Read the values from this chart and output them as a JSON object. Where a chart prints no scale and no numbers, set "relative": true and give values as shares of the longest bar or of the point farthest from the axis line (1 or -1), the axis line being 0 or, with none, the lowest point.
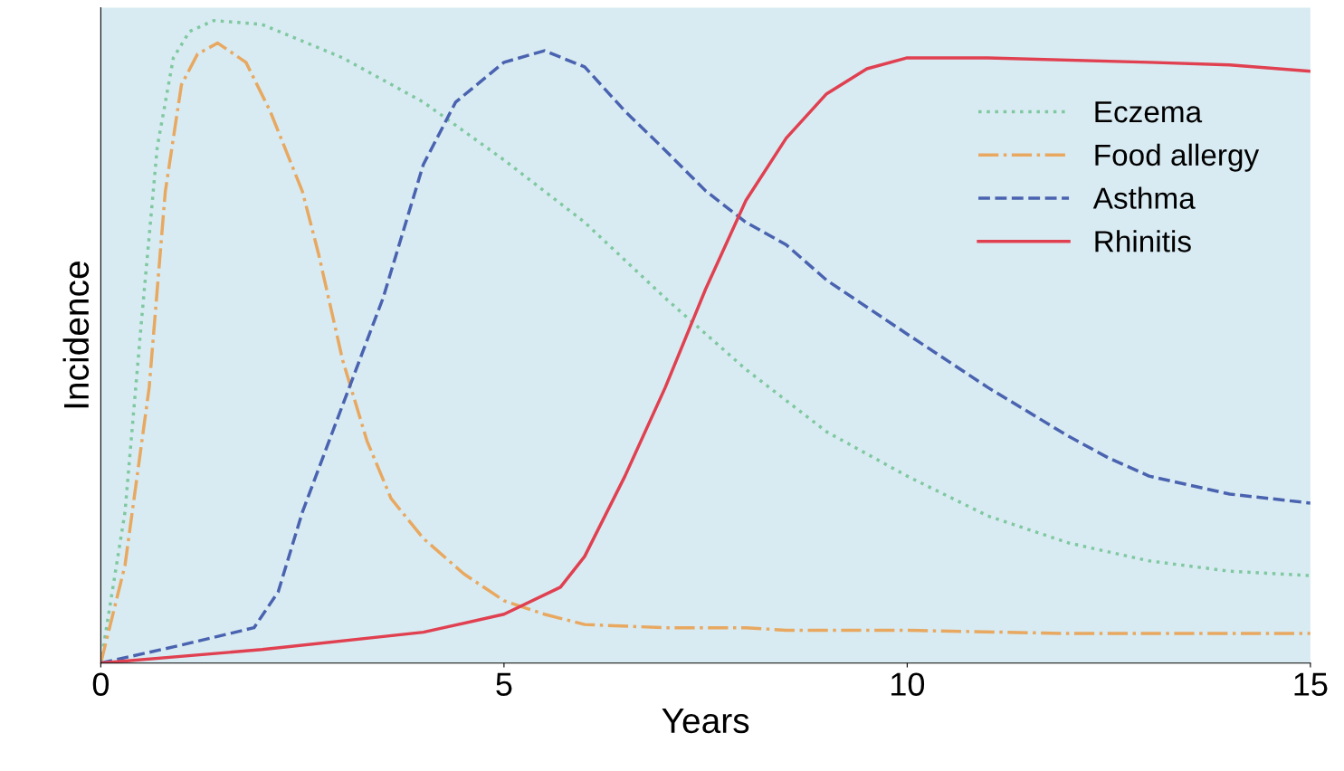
{
  "chart_data": {
    "type": "line",
    "relative": true,
    "xlabel": "Years",
    "ylabel": "Incidence",
    "xlim": [
      0,
      15
    ],
    "xticks": [
      0,
      5,
      10,
      15
    ],
    "legend": "top right",
    "tick_labels": "x",
    "series": [
      {
        "name": "Eczema",
        "color": "#7fc8a0",
        "line_style": "dotted",
        "x": [
          0,
          0.3,
          0.5,
          0.7,
          0.9,
          1.1,
          1.4,
          2,
          3,
          4,
          5,
          6,
          7,
          8,
          9,
          10,
          11,
          12,
          13,
          14,
          15
        ],
        "values": [
          0,
          0.235,
          0.526,
          0.803,
          0.942,
          0.983,
          1.0,
          0.994,
          0.942,
          0.873,
          0.783,
          0.686,
          0.568,
          0.457,
          0.36,
          0.291,
          0.229,
          0.187,
          0.159,
          0.143,
          0.136
        ]
      },
      {
        "name": "Food allergy",
        "color": "#e8a860",
        "line_style": "dashdot",
        "x": [
          0,
          0.3,
          0.6,
          0.8,
          1.0,
          1.2,
          1.45,
          1.8,
          2.1,
          2.5,
          2.7,
          3,
          3.3,
          3.6,
          4,
          4.5,
          5,
          5.5,
          6,
          7,
          8,
          8.5,
          10,
          12,
          15
        ],
        "values": [
          0,
          0.152,
          0.429,
          0.734,
          0.9,
          0.948,
          0.965,
          0.935,
          0.859,
          0.734,
          0.637,
          0.471,
          0.346,
          0.256,
          0.194,
          0.139,
          0.097,
          0.076,
          0.06,
          0.055,
          0.055,
          0.051,
          0.051,
          0.046,
          0.046
        ]
      },
      {
        "name": "Asthma",
        "color": "#4a63b0",
        "line_style": "dashed",
        "x": [
          0,
          1,
          1.9,
          2.2,
          2.5,
          3,
          3.5,
          4,
          4.4,
          5,
          5.5,
          6,
          6.5,
          7,
          7.5,
          8,
          8.5,
          9,
          10,
          11,
          12,
          12.5,
          13,
          14,
          15
        ],
        "values": [
          0,
          0.028,
          0.055,
          0.111,
          0.235,
          0.402,
          0.568,
          0.776,
          0.873,
          0.935,
          0.953,
          0.928,
          0.859,
          0.798,
          0.735,
          0.686,
          0.651,
          0.596,
          0.512,
          0.429,
          0.353,
          0.319,
          0.291,
          0.263,
          0.249
        ]
      },
      {
        "name": "Rhinitis",
        "color": "#e04050",
        "line_style": "solid",
        "x": [
          0,
          2,
          4,
          5,
          5.7,
          6,
          6.5,
          7,
          7.5,
          8,
          8.5,
          9,
          9.5,
          10,
          11,
          13,
          14,
          15
        ],
        "values": [
          0,
          0.021,
          0.048,
          0.076,
          0.118,
          0.166,
          0.291,
          0.429,
          0.582,
          0.72,
          0.817,
          0.886,
          0.925,
          0.942,
          0.942,
          0.935,
          0.931,
          0.921
        ]
      }
    ]
  }
}
